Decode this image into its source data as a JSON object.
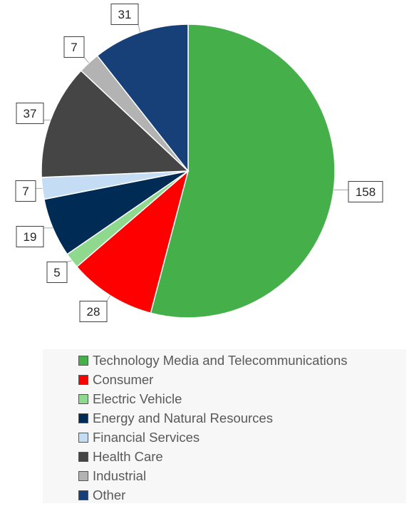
{
  "chart_data": {
    "type": "pie",
    "title": "",
    "legend_position": "bottom",
    "data_labels": true,
    "slices": [
      {
        "name": "Technology Media and Telecommunications",
        "value": 158,
        "color": "#45b049"
      },
      {
        "name": "Consumer",
        "value": 28,
        "color": "#ff0000"
      },
      {
        "name": "Electric Vehicle",
        "value": 5,
        "color": "#8fd98f"
      },
      {
        "name": "Energy and Natural Resources",
        "value": 19,
        "color": "#002b55"
      },
      {
        "name": "Financial Services",
        "value": 7,
        "color": "#c5dcf5"
      },
      {
        "name": "Health Care",
        "value": 37,
        "color": "#454545"
      },
      {
        "name": "Industrial",
        "value": 7,
        "color": "#b3b3b3"
      },
      {
        "name": "Other",
        "value": 31,
        "color": "#173f78"
      }
    ]
  }
}
